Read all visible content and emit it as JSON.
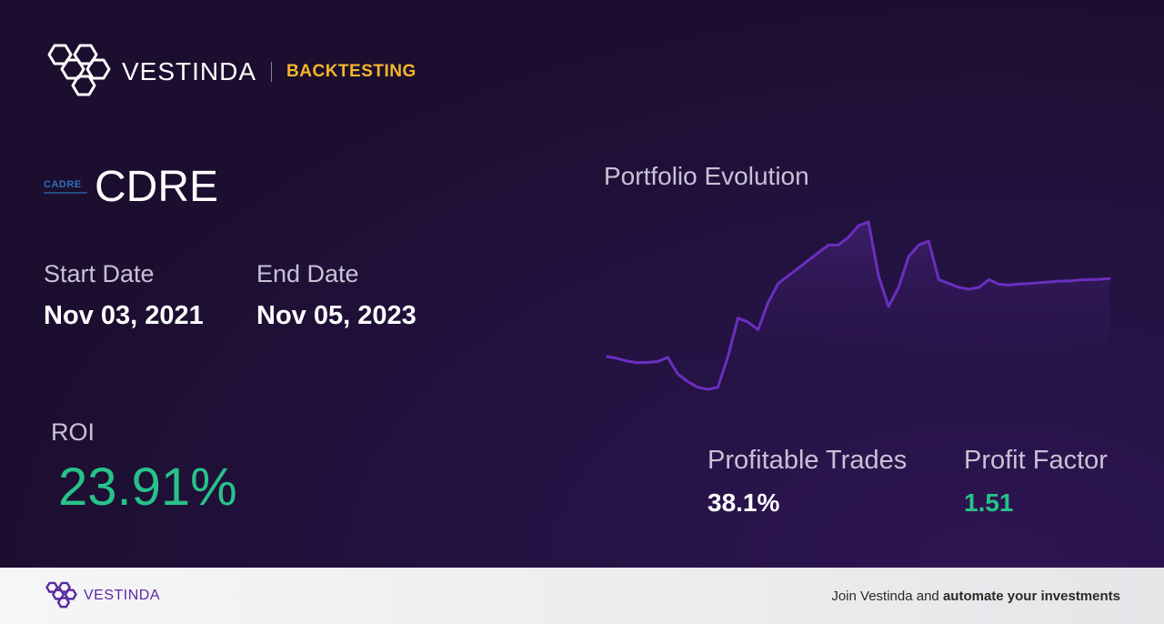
{
  "brand": {
    "name": "VESTINDA",
    "tag": "BACKTESTING",
    "tag_color": "#f5b52a"
  },
  "ticker": {
    "logo_text": "CADRE",
    "symbol": "CDRE"
  },
  "dates": {
    "start_label": "Start Date",
    "start_value": "Nov 03, 2021",
    "end_label": "End Date",
    "end_value": "Nov 05, 2023"
  },
  "roi": {
    "label": "ROI",
    "value": "23.91%",
    "color": "#27c28a"
  },
  "chart": {
    "title": "Portfolio Evolution",
    "line_color": "#6a2fbf"
  },
  "chart_data": {
    "type": "area",
    "title": "Portfolio Evolution",
    "xlabel": "",
    "ylabel": "",
    "x": [
      0,
      2,
      4,
      6,
      8,
      10,
      12,
      14,
      16,
      18,
      20,
      22,
      24,
      26,
      28,
      30,
      32,
      34,
      36,
      38,
      40,
      42,
      44,
      46,
      48,
      50,
      52,
      54,
      56,
      58,
      60,
      62,
      64,
      66,
      68,
      70,
      72,
      74,
      76,
      78,
      80,
      82,
      84,
      86,
      88,
      90,
      92,
      94,
      96,
      98,
      100
    ],
    "values": [
      100,
      99.5,
      98.8,
      98.4,
      98.5,
      98.7,
      99.8,
      95.5,
      93.5,
      92,
      91.5,
      92,
      100,
      110,
      109,
      107,
      114,
      119,
      121,
      123,
      125,
      127,
      129,
      129,
      131,
      134,
      135,
      121,
      113,
      118,
      126,
      129,
      130,
      120,
      119,
      118,
      117.5,
      118,
      120,
      118.8,
      118.6,
      118.9,
      119,
      119.2,
      119.4,
      119.6,
      119.7,
      119.9,
      120,
      120.1,
      120.3
    ],
    "grid": false,
    "legend": "none"
  },
  "metrics": {
    "trades_label": "Profitable Trades",
    "trades_value": "38.1%",
    "factor_label": "Profit Factor",
    "factor_value": "1.51",
    "factor_color": "#27c28a"
  },
  "footer": {
    "brand_name": "VESTINDA",
    "cta_prefix": "Join Vestinda and ",
    "cta_bold": "automate your investments"
  }
}
